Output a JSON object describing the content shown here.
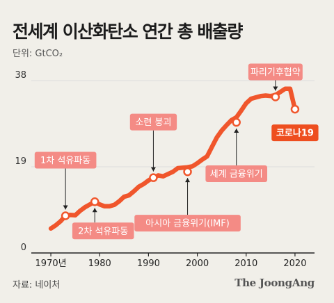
{
  "title": "전세계 이산화탄소 연간 총 배출량",
  "unit_label": "단위: GtCO₂",
  "source": "자료: 네이처",
  "brand": "The JoongAng",
  "colors": {
    "line": "#f0562c",
    "callout": "#f48b85",
    "callout_strong": "#ee4e1f",
    "background": "#f1efe9",
    "axis": "#222222",
    "grid": "#dddddd"
  },
  "chart_data": {
    "type": "line",
    "title": "전세계 이산화탄소 연간 총 배출량",
    "xlabel": "",
    "ylabel": "단위: GtCO₂",
    "xlim": [
      1966,
      2024
    ],
    "ylim": [
      0,
      38
    ],
    "yticks": [
      0,
      19,
      38
    ],
    "xticks": [
      {
        "value": 1970,
        "label": "1970년"
      },
      {
        "value": 1980,
        "label": "1980"
      },
      {
        "value": 1990,
        "label": "1990"
      },
      {
        "value": 2000,
        "label": "2000"
      },
      {
        "value": 2010,
        "label": "2010"
      },
      {
        "value": 2020,
        "label": "2020"
      }
    ],
    "grid": true,
    "series": [
      {
        "x": [
          1970,
          1971,
          1972,
          1973,
          1974,
          1975,
          1976,
          1977,
          1978,
          1979,
          1980,
          1981,
          1982,
          1983,
          1984,
          1985,
          1986,
          1987,
          1988,
          1989,
          1990,
          1991,
          1992,
          1993,
          1994,
          1995,
          1996,
          1997,
          1998,
          1999,
          2000,
          2001,
          2002,
          2003,
          2004,
          2005,
          2006,
          2007,
          2008,
          2009,
          2010,
          2011,
          2012,
          2013,
          2014,
          2015,
          2016,
          2017,
          2018,
          2019,
          2020
        ],
        "values": [
          5.4,
          6.1,
          7.0,
          8.2,
          8.4,
          8.3,
          9.3,
          10.1,
          10.7,
          11.3,
          10.7,
          10.3,
          10.3,
          10.6,
          11.4,
          12.4,
          12.7,
          13.6,
          14.6,
          15.2,
          16.0,
          16.6,
          17.1,
          16.9,
          17.4,
          17.9,
          18.7,
          18.8,
          18.9,
          19.1,
          19.8,
          20.6,
          21.3,
          23.4,
          25.5,
          27.0,
          28.2,
          29.3,
          29.9,
          31.4,
          33.0,
          34.0,
          34.3,
          34.6,
          34.7,
          34.6,
          34.8,
          35.5,
          36.2,
          36.2,
          31.7
        ]
      }
    ],
    "annotations": [
      {
        "x": 1973,
        "y": 8.2,
        "label": "1차 석유파동",
        "dir": "above",
        "dx": 0,
        "strong": false
      },
      {
        "x": 1979,
        "y": 11.3,
        "label": "2차 석유파동",
        "dir": "below",
        "dx": 12,
        "strong": false
      },
      {
        "x": 1991,
        "y": 16.6,
        "label": "소련 붕괴",
        "dir": "above",
        "dx": 0,
        "strong": false
      },
      {
        "x": 1998,
        "y": 17.9,
        "label": "아시아 금융위기(IMF)",
        "dir": "below",
        "dx": 0,
        "strong": false
      },
      {
        "x": 2008,
        "y": 28.8,
        "label": "세계 금융위기",
        "dir": "below",
        "dx": 0,
        "strong": false
      },
      {
        "x": 2016,
        "y": 34.4,
        "label": "파리기후협약",
        "dir": "above",
        "dx": 0,
        "strong": false
      },
      {
        "x": 2020,
        "y": 31.7,
        "label": "코로나19",
        "dir": "below",
        "dx": 0,
        "strong": true
      }
    ]
  }
}
